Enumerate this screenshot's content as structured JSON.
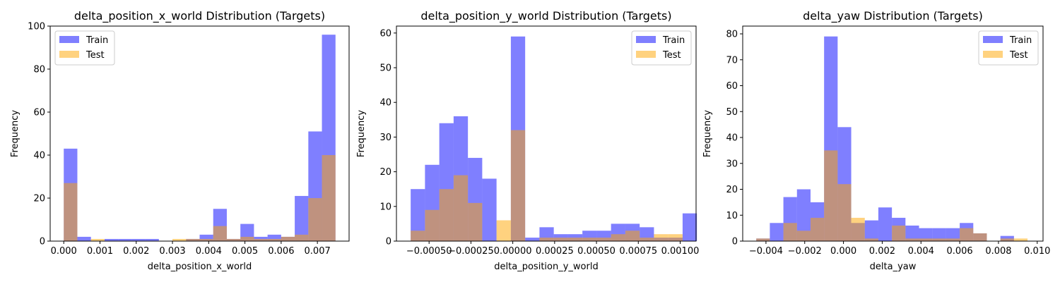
{
  "colors": {
    "train": "#0000ff",
    "test": "#ffa500"
  },
  "chart_data": [
    {
      "type": "histogram",
      "title": "delta_position_x_world Distribution (Targets)",
      "xlabel": "delta_position_x_world",
      "ylabel": "Frequency",
      "xlim": [
        -0.000375,
        0.007875
      ],
      "ylim": [
        0,
        100
      ],
      "xticks": [
        0.0,
        0.001,
        0.002,
        0.003,
        0.004,
        0.005,
        0.006,
        0.007
      ],
      "xtick_labels": [
        "0.000",
        "0.001",
        "0.002",
        "0.003",
        "0.004",
        "0.005",
        "0.006",
        "0.007"
      ],
      "yticks": [
        0,
        20,
        40,
        60,
        80,
        100
      ],
      "ytick_labels": [
        "0",
        "20",
        "40",
        "60",
        "80",
        "100"
      ],
      "legend": {
        "position": "upper left",
        "entries": [
          "Train",
          "Test"
        ]
      },
      "series": [
        {
          "name": "Train",
          "color": "#0000ff",
          "alpha": 0.5,
          "bin_start": 0,
          "bin_width": 0.000375,
          "counts": [
            43,
            2,
            0,
            1,
            1,
            1,
            1,
            0,
            0,
            1,
            3,
            15,
            1,
            8,
            2,
            3,
            2,
            21,
            51,
            96
          ]
        },
        {
          "name": "Test",
          "color": "#ffa500",
          "alpha": 0.5,
          "bin_start": 0,
          "bin_width": 0.000375,
          "counts": [
            27,
            0,
            1,
            0,
            0,
            0,
            0,
            0,
            1,
            1,
            1,
            7,
            1,
            2,
            1,
            1,
            2,
            3,
            20,
            40
          ]
        }
      ]
    },
    {
      "type": "histogram",
      "title": "delta_position_y_world Distribution (Targets)",
      "xlabel": "delta_position_y_world",
      "ylabel": "Frequency",
      "xlim": [
        -0.000695,
        0.001095
      ],
      "ylim": [
        0,
        62
      ],
      "xticks": [
        -0.0005,
        -0.00025,
        0.0,
        0.00025,
        0.0005,
        0.00075,
        0.001
      ],
      "xtick_labels": [
        "−0.00050",
        "−0.00025",
        "0.00000",
        "0.00025",
        "0.00050",
        "0.00075",
        "0.00100"
      ],
      "yticks": [
        0,
        10,
        20,
        30,
        40,
        50,
        60
      ],
      "ytick_labels": [
        "0",
        "10",
        "20",
        "30",
        "40",
        "50",
        "60"
      ],
      "legend": {
        "position": "upper right",
        "entries": [
          "Train",
          "Test"
        ]
      },
      "series": [
        {
          "name": "Train",
          "color": "#0000ff",
          "alpha": 0.5,
          "bin_start": -0.00061,
          "bin_width": 8.55e-05,
          "counts": [
            15,
            22,
            34,
            36,
            24,
            18,
            0,
            59,
            1,
            4,
            2,
            2,
            3,
            3,
            5,
            5,
            4,
            1,
            1,
            8
          ]
        },
        {
          "name": "Test",
          "color": "#ffa500",
          "alpha": 0.5,
          "bin_start": -0.00061,
          "bin_width": 8.55e-05,
          "counts": [
            3,
            9,
            15,
            19,
            11,
            0,
            6,
            32,
            0,
            1,
            1,
            1,
            1,
            1,
            2,
            3,
            1,
            2,
            2,
            0
          ]
        }
      ]
    },
    {
      "type": "histogram",
      "title": "delta_yaw Distribution (Targets)",
      "xlabel": "delta_yaw",
      "ylabel": "Frequency",
      "xlim": [
        -0.0052,
        0.0103
      ],
      "ylim": [
        0,
        83
      ],
      "xticks": [
        -0.004,
        -0.002,
        0.0,
        0.002,
        0.004,
        0.006,
        0.008,
        0.01
      ],
      "xtick_labels": [
        "−0.004",
        "−0.002",
        "0.000",
        "0.002",
        "0.004",
        "0.006",
        "0.008",
        "0.010"
      ],
      "yticks": [
        0,
        10,
        20,
        30,
        40,
        50,
        60,
        70,
        80
      ],
      "ytick_labels": [
        "0",
        "10",
        "20",
        "30",
        "40",
        "50",
        "60",
        "70",
        "80"
      ],
      "legend": {
        "position": "upper right",
        "entries": [
          "Train",
          "Test"
        ]
      },
      "series": [
        {
          "name": "Train",
          "color": "#0000ff",
          "alpha": 0.5,
          "bin_start": -0.0045,
          "bin_width": 0.0007,
          "counts": [
            1,
            7,
            17,
            20,
            15,
            79,
            44,
            7,
            8,
            13,
            9,
            6,
            5,
            5,
            5,
            7,
            3,
            0,
            2,
            0
          ]
        },
        {
          "name": "Test",
          "color": "#ffa500",
          "alpha": 0.5,
          "bin_start": -0.0045,
          "bin_width": 0.0007,
          "counts": [
            1,
            0,
            7,
            4,
            9,
            35,
            22,
            9,
            1,
            0,
            6,
            1,
            1,
            1,
            1,
            5,
            3,
            0,
            1,
            1
          ]
        }
      ]
    }
  ]
}
